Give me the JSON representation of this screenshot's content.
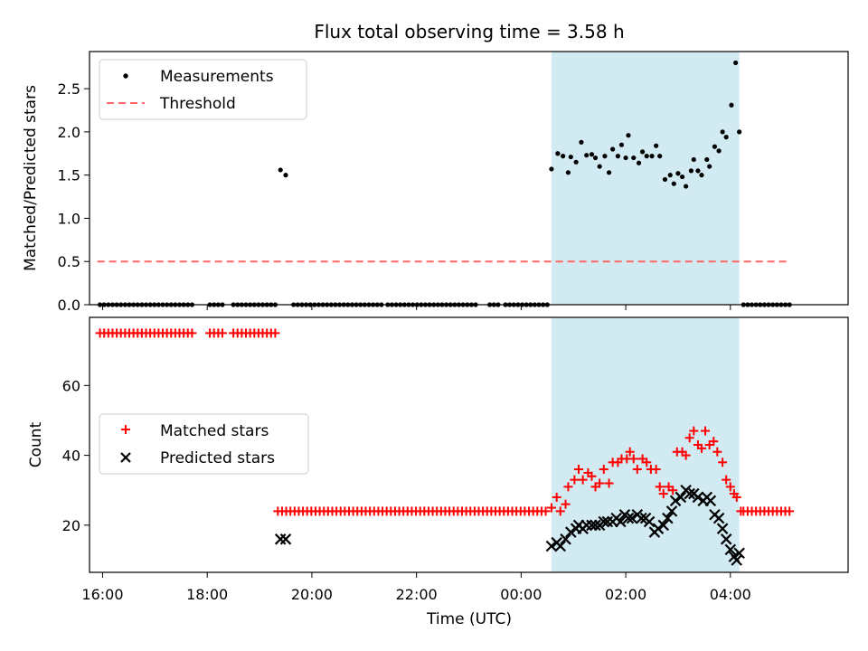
{
  "chart_data": {
    "type": "scatter",
    "title": "Flux total observing time = 3.58 h",
    "xlabel": "Time (UTC)",
    "x_unit": "hours relative to 16:00 UTC",
    "xlim": [
      -0.25,
      14.25
    ],
    "x_ticks": [
      {
        "value": 0,
        "label": "16:00"
      },
      {
        "value": 2,
        "label": "18:00"
      },
      {
        "value": 4,
        "label": "20:00"
      },
      {
        "value": 6,
        "label": "22:00"
      },
      {
        "value": 8,
        "label": "00:00"
      },
      {
        "value": 10,
        "label": "02:00"
      },
      {
        "value": 12,
        "label": "04:00"
      }
    ],
    "observing_window": [
      8.58,
      12.17
    ],
    "colors": {
      "window": "#add8e6",
      "threshold": "#ff6666",
      "matched": "#ff0000",
      "predicted": "#000000",
      "measurements": "#000000"
    },
    "top": {
      "ylabel": "Matched/Predicted stars",
      "ylim": [
        0,
        2.93
      ],
      "y_ticks": [
        {
          "value": 0,
          "label": "0.0"
        },
        {
          "value": 0.5,
          "label": "0.5"
        },
        {
          "value": 1.0,
          "label": "1.0"
        },
        {
          "value": 1.5,
          "label": "1.5"
        },
        {
          "value": 2.0,
          "label": "2.0"
        },
        {
          "value": 2.5,
          "label": "2.5"
        }
      ],
      "legend": {
        "measurements": "Measurements",
        "threshold": "Threshold"
      },
      "threshold": {
        "value": 0.5,
        "x": [
          -0.1,
          13.1
        ]
      },
      "measurements": {
        "zero_segments": [
          [
            -0.05,
            1.75
          ],
          [
            2.05,
            2.3
          ],
          [
            2.5,
            3.35
          ],
          [
            3.65,
            5.35
          ],
          [
            5.45,
            7.2
          ],
          [
            7.4,
            7.6
          ],
          [
            7.7,
            8.5
          ],
          [
            12.25,
            13.15
          ]
        ],
        "spike": [
          [
            3.4,
            1.56
          ],
          [
            3.5,
            1.5
          ]
        ],
        "window_points": [
          [
            8.58,
            1.57
          ],
          [
            8.7,
            1.75
          ],
          [
            8.8,
            1.72
          ],
          [
            8.9,
            1.53
          ],
          [
            8.95,
            1.71
          ],
          [
            9.05,
            1.65
          ],
          [
            9.15,
            1.88
          ],
          [
            9.25,
            1.73
          ],
          [
            9.35,
            1.74
          ],
          [
            9.42,
            1.7
          ],
          [
            9.5,
            1.6
          ],
          [
            9.6,
            1.72
          ],
          [
            9.68,
            1.53
          ],
          [
            9.75,
            1.8
          ],
          [
            9.85,
            1.72
          ],
          [
            9.92,
            1.85
          ],
          [
            10.0,
            1.7
          ],
          [
            10.05,
            1.96
          ],
          [
            10.15,
            1.7
          ],
          [
            10.25,
            1.64
          ],
          [
            10.32,
            1.77
          ],
          [
            10.4,
            1.72
          ],
          [
            10.5,
            1.72
          ],
          [
            10.58,
            1.84
          ],
          [
            10.65,
            1.72
          ],
          [
            10.75,
            1.45
          ],
          [
            10.85,
            1.5
          ],
          [
            10.92,
            1.4
          ],
          [
            11.0,
            1.52
          ],
          [
            11.08,
            1.48
          ],
          [
            11.15,
            1.37
          ],
          [
            11.25,
            1.55
          ],
          [
            11.3,
            1.68
          ],
          [
            11.38,
            1.55
          ],
          [
            11.45,
            1.5
          ],
          [
            11.55,
            1.68
          ],
          [
            11.6,
            1.6
          ],
          [
            11.7,
            1.83
          ],
          [
            11.78,
            1.78
          ],
          [
            11.85,
            2.0
          ],
          [
            11.92,
            1.94
          ],
          [
            12.02,
            2.31
          ],
          [
            12.1,
            2.8
          ],
          [
            12.17,
            2.0
          ]
        ]
      }
    },
    "bottom": {
      "ylabel": "Count",
      "ylim": [
        6.5,
        79.5
      ],
      "y_ticks": [
        {
          "value": 20,
          "label": "20"
        },
        {
          "value": 40,
          "label": "40"
        },
        {
          "value": 60,
          "label": "60"
        }
      ],
      "legend": {
        "matched": "Matched stars",
        "predicted": "Predicted stars"
      },
      "matched": {
        "segments": [
          {
            "x_start": -0.05,
            "x_end": 1.75,
            "y": 75
          },
          {
            "x_start": 2.05,
            "x_end": 2.3,
            "y": 75
          },
          {
            "x_start": 2.5,
            "x_end": 3.35,
            "y": 75
          },
          {
            "x_start": 3.35,
            "x_end": 8.5,
            "y": 24
          },
          {
            "x_start": 12.25,
            "x_end": 13.15,
            "y": 24
          }
        ],
        "window_points": [
          [
            8.58,
            25
          ],
          [
            8.68,
            28
          ],
          [
            8.75,
            24
          ],
          [
            8.85,
            26
          ],
          [
            8.9,
            31
          ],
          [
            9.02,
            33
          ],
          [
            9.1,
            36
          ],
          [
            9.18,
            33
          ],
          [
            9.28,
            35
          ],
          [
            9.35,
            34
          ],
          [
            9.42,
            31
          ],
          [
            9.5,
            32
          ],
          [
            9.58,
            36
          ],
          [
            9.68,
            32
          ],
          [
            9.75,
            38
          ],
          [
            9.85,
            38
          ],
          [
            9.92,
            39
          ],
          [
            10.02,
            39
          ],
          [
            10.08,
            41
          ],
          [
            10.15,
            39
          ],
          [
            10.22,
            36
          ],
          [
            10.32,
            39
          ],
          [
            10.4,
            38
          ],
          [
            10.48,
            36
          ],
          [
            10.58,
            36
          ],
          [
            10.65,
            31
          ],
          [
            10.72,
            29
          ],
          [
            10.82,
            31
          ],
          [
            10.9,
            30
          ],
          [
            10.98,
            41
          ],
          [
            11.08,
            41
          ],
          [
            11.15,
            40
          ],
          [
            11.22,
            45
          ],
          [
            11.3,
            47
          ],
          [
            11.38,
            43
          ],
          [
            11.45,
            42
          ],
          [
            11.52,
            47
          ],
          [
            11.6,
            43
          ],
          [
            11.68,
            44
          ],
          [
            11.75,
            41
          ],
          [
            11.85,
            38
          ],
          [
            11.92,
            33
          ],
          [
            12.0,
            31
          ],
          [
            12.07,
            29
          ],
          [
            12.12,
            28
          ],
          [
            12.2,
            24
          ]
        ]
      },
      "predicted": {
        "spike": [
          [
            3.4,
            16
          ],
          [
            3.5,
            16
          ]
        ],
        "window_points": [
          [
            8.58,
            14
          ],
          [
            8.68,
            15
          ],
          [
            8.75,
            14
          ],
          [
            8.85,
            16
          ],
          [
            8.95,
            18
          ],
          [
            9.05,
            19
          ],
          [
            9.1,
            20
          ],
          [
            9.18,
            19
          ],
          [
            9.25,
            20
          ],
          [
            9.35,
            20
          ],
          [
            9.42,
            20
          ],
          [
            9.5,
            20
          ],
          [
            9.58,
            21
          ],
          [
            9.65,
            21
          ],
          [
            9.75,
            21
          ],
          [
            9.82,
            22
          ],
          [
            9.9,
            21
          ],
          [
            9.98,
            23
          ],
          [
            10.05,
            22
          ],
          [
            10.12,
            22
          ],
          [
            10.22,
            23
          ],
          [
            10.3,
            22
          ],
          [
            10.38,
            22
          ],
          [
            10.45,
            21
          ],
          [
            10.55,
            18
          ],
          [
            10.62,
            19
          ],
          [
            10.72,
            20
          ],
          [
            10.8,
            22
          ],
          [
            10.88,
            24
          ],
          [
            10.95,
            27
          ],
          [
            11.05,
            28
          ],
          [
            11.15,
            30
          ],
          [
            11.22,
            29
          ],
          [
            11.3,
            29
          ],
          [
            11.38,
            28
          ],
          [
            11.48,
            27
          ],
          [
            11.55,
            28
          ],
          [
            11.62,
            27
          ],
          [
            11.7,
            23
          ],
          [
            11.78,
            22
          ],
          [
            11.85,
            19
          ],
          [
            11.92,
            16
          ],
          [
            12.0,
            13
          ],
          [
            12.07,
            11
          ],
          [
            12.12,
            10
          ],
          [
            12.17,
            12
          ]
        ]
      }
    }
  }
}
